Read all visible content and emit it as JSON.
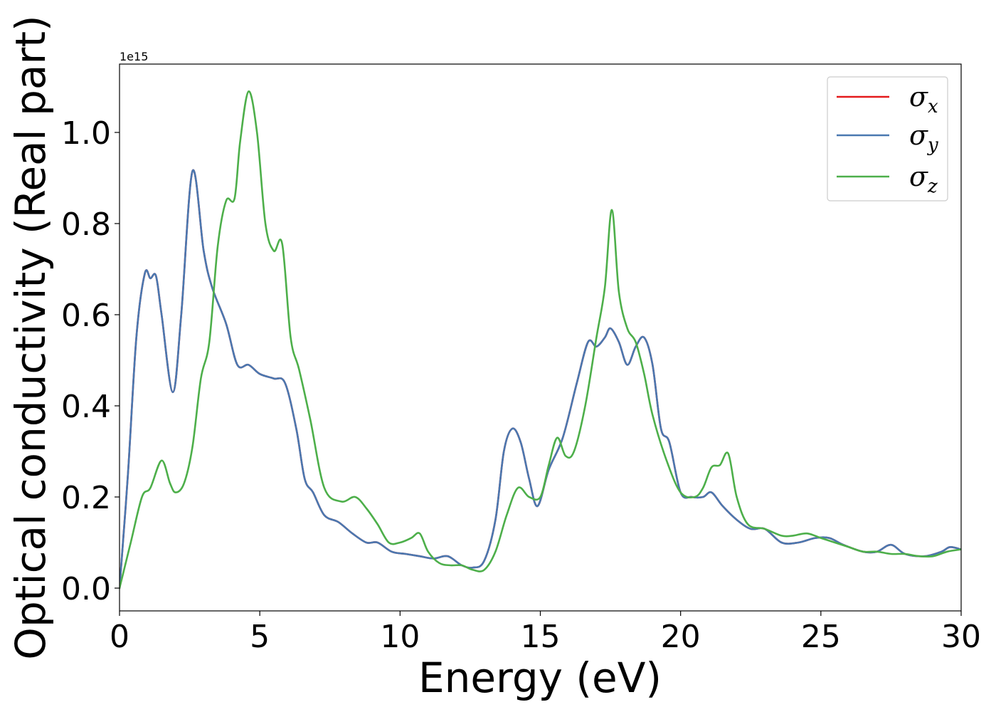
{
  "chart_data": {
    "type": "line",
    "xlabel": "Energy (eV)",
    "ylabel": "Optical conductivity (Real part)",
    "y_offset_text": "1e15",
    "xlim": [
      0,
      30
    ],
    "ylim": [
      -0.05,
      1.15
    ],
    "y_scale_factor": 1000000000000000.0,
    "x_ticks": [
      0,
      5,
      10,
      15,
      20,
      25,
      30
    ],
    "x_tick_labels": [
      "0",
      "5",
      "10",
      "15",
      "20",
      "25",
      "30"
    ],
    "y_ticks": [
      0.0,
      0.2,
      0.4,
      0.6,
      0.8,
      1.0
    ],
    "y_tick_labels": [
      "0.0",
      "0.2",
      "0.4",
      "0.6",
      "0.8",
      "1.0"
    ],
    "grid": false,
    "legend_placement": "top-right",
    "series": [
      {
        "name": "σx",
        "legend_base": "σ",
        "legend_sub": "x",
        "color": "#e41a1c",
        "x": [
          0,
          0.3,
          0.6,
          0.9,
          1.1,
          1.3,
          1.5,
          1.9,
          2.2,
          2.6,
          3.0,
          3.3,
          3.8,
          4.2,
          4.6,
          5.0,
          5.5,
          5.9,
          6.3,
          6.6,
          6.9,
          7.3,
          7.8,
          8.3,
          8.8,
          9.2,
          9.7,
          10.2,
          10.7,
          11.2,
          11.7,
          12.2,
          12.6,
          13.0,
          13.4,
          13.7,
          14.0,
          14.3,
          14.6,
          14.9,
          15.3,
          15.8,
          16.3,
          16.7,
          17.0,
          17.3,
          17.5,
          17.8,
          18.1,
          18.4,
          18.7,
          19.0,
          19.3,
          19.6,
          20.0,
          20.4,
          20.8,
          21.1,
          21.5,
          22.0,
          22.5,
          23.0,
          23.6,
          24.2,
          24.8,
          25.3,
          25.8,
          26.5,
          27.0,
          27.5,
          28.0,
          28.7,
          29.3,
          29.6,
          30
        ],
        "y": [
          0,
          0.25,
          0.55,
          0.69,
          0.68,
          0.685,
          0.6,
          0.43,
          0.6,
          0.915,
          0.74,
          0.66,
          0.58,
          0.49,
          0.49,
          0.47,
          0.46,
          0.45,
          0.35,
          0.24,
          0.21,
          0.16,
          0.145,
          0.12,
          0.1,
          0.1,
          0.08,
          0.075,
          0.07,
          0.065,
          0.07,
          0.05,
          0.045,
          0.06,
          0.15,
          0.3,
          0.35,
          0.32,
          0.24,
          0.18,
          0.26,
          0.33,
          0.45,
          0.54,
          0.53,
          0.55,
          0.57,
          0.54,
          0.49,
          0.53,
          0.55,
          0.49,
          0.35,
          0.32,
          0.21,
          0.2,
          0.2,
          0.21,
          0.18,
          0.15,
          0.13,
          0.13,
          0.1,
          0.1,
          0.11,
          0.11,
          0.095,
          0.08,
          0.08,
          0.095,
          0.075,
          0.07,
          0.08,
          0.09,
          0.085
        ]
      },
      {
        "name": "σy",
        "legend_base": "σ",
        "legend_sub": "y",
        "color": "#4a78b0",
        "x": [
          0,
          0.3,
          0.6,
          0.9,
          1.1,
          1.3,
          1.5,
          1.9,
          2.2,
          2.6,
          3.0,
          3.3,
          3.8,
          4.2,
          4.6,
          5.0,
          5.5,
          5.9,
          6.3,
          6.6,
          6.9,
          7.3,
          7.8,
          8.3,
          8.8,
          9.2,
          9.7,
          10.2,
          10.7,
          11.2,
          11.7,
          12.2,
          12.6,
          13.0,
          13.4,
          13.7,
          14.0,
          14.3,
          14.6,
          14.9,
          15.3,
          15.8,
          16.3,
          16.7,
          17.0,
          17.3,
          17.5,
          17.8,
          18.1,
          18.4,
          18.7,
          19.0,
          19.3,
          19.6,
          20.0,
          20.4,
          20.8,
          21.1,
          21.5,
          22.0,
          22.5,
          23.0,
          23.6,
          24.2,
          24.8,
          25.3,
          25.8,
          26.5,
          27.0,
          27.5,
          28.0,
          28.7,
          29.3,
          29.6,
          30
        ],
        "y": [
          0,
          0.25,
          0.55,
          0.69,
          0.68,
          0.685,
          0.6,
          0.43,
          0.6,
          0.915,
          0.74,
          0.66,
          0.58,
          0.49,
          0.49,
          0.47,
          0.46,
          0.45,
          0.35,
          0.24,
          0.21,
          0.16,
          0.145,
          0.12,
          0.1,
          0.1,
          0.08,
          0.075,
          0.07,
          0.065,
          0.07,
          0.05,
          0.045,
          0.06,
          0.15,
          0.3,
          0.35,
          0.32,
          0.24,
          0.18,
          0.26,
          0.33,
          0.45,
          0.54,
          0.53,
          0.55,
          0.57,
          0.54,
          0.49,
          0.53,
          0.55,
          0.49,
          0.35,
          0.32,
          0.21,
          0.2,
          0.2,
          0.21,
          0.18,
          0.15,
          0.13,
          0.13,
          0.1,
          0.1,
          0.11,
          0.11,
          0.095,
          0.08,
          0.08,
          0.095,
          0.075,
          0.07,
          0.08,
          0.09,
          0.085
        ]
      },
      {
        "name": "σz",
        "legend_base": "σ",
        "legend_sub": "z",
        "color": "#4daf4a",
        "x": [
          0,
          0.4,
          0.8,
          1.1,
          1.5,
          1.8,
          2.0,
          2.3,
          2.6,
          2.9,
          3.2,
          3.5,
          3.8,
          4.1,
          4.3,
          4.6,
          4.9,
          5.2,
          5.5,
          5.8,
          6.1,
          6.4,
          6.8,
          7.3,
          7.9,
          8.4,
          8.8,
          9.2,
          9.6,
          10.0,
          10.4,
          10.7,
          11.0,
          11.4,
          11.8,
          12.2,
          12.6,
          13.0,
          13.4,
          13.8,
          14.2,
          14.6,
          15.0,
          15.3,
          15.6,
          15.9,
          16.2,
          16.6,
          17.0,
          17.3,
          17.55,
          17.8,
          18.1,
          18.4,
          18.7,
          19.0,
          19.5,
          20.0,
          20.5,
          20.8,
          21.1,
          21.4,
          21.7,
          22.0,
          22.4,
          23.0,
          23.6,
          24.0,
          24.5,
          25.0,
          25.5,
          26.0,
          26.5,
          27.0,
          27.5,
          28.0,
          28.5,
          29.0,
          29.5,
          30
        ],
        "y": [
          0,
          0.1,
          0.2,
          0.22,
          0.28,
          0.23,
          0.21,
          0.23,
          0.31,
          0.46,
          0.54,
          0.75,
          0.85,
          0.855,
          0.98,
          1.09,
          1.0,
          0.8,
          0.74,
          0.755,
          0.55,
          0.48,
          0.37,
          0.22,
          0.19,
          0.2,
          0.175,
          0.14,
          0.1,
          0.1,
          0.11,
          0.12,
          0.08,
          0.055,
          0.05,
          0.05,
          0.04,
          0.04,
          0.08,
          0.16,
          0.22,
          0.2,
          0.2,
          0.27,
          0.33,
          0.29,
          0.3,
          0.4,
          0.55,
          0.66,
          0.83,
          0.65,
          0.57,
          0.54,
          0.47,
          0.38,
          0.28,
          0.21,
          0.2,
          0.22,
          0.265,
          0.27,
          0.295,
          0.2,
          0.14,
          0.13,
          0.115,
          0.115,
          0.12,
          0.11,
          0.1,
          0.09,
          0.08,
          0.08,
          0.075,
          0.075,
          0.07,
          0.07,
          0.08,
          0.085
        ]
      }
    ]
  }
}
